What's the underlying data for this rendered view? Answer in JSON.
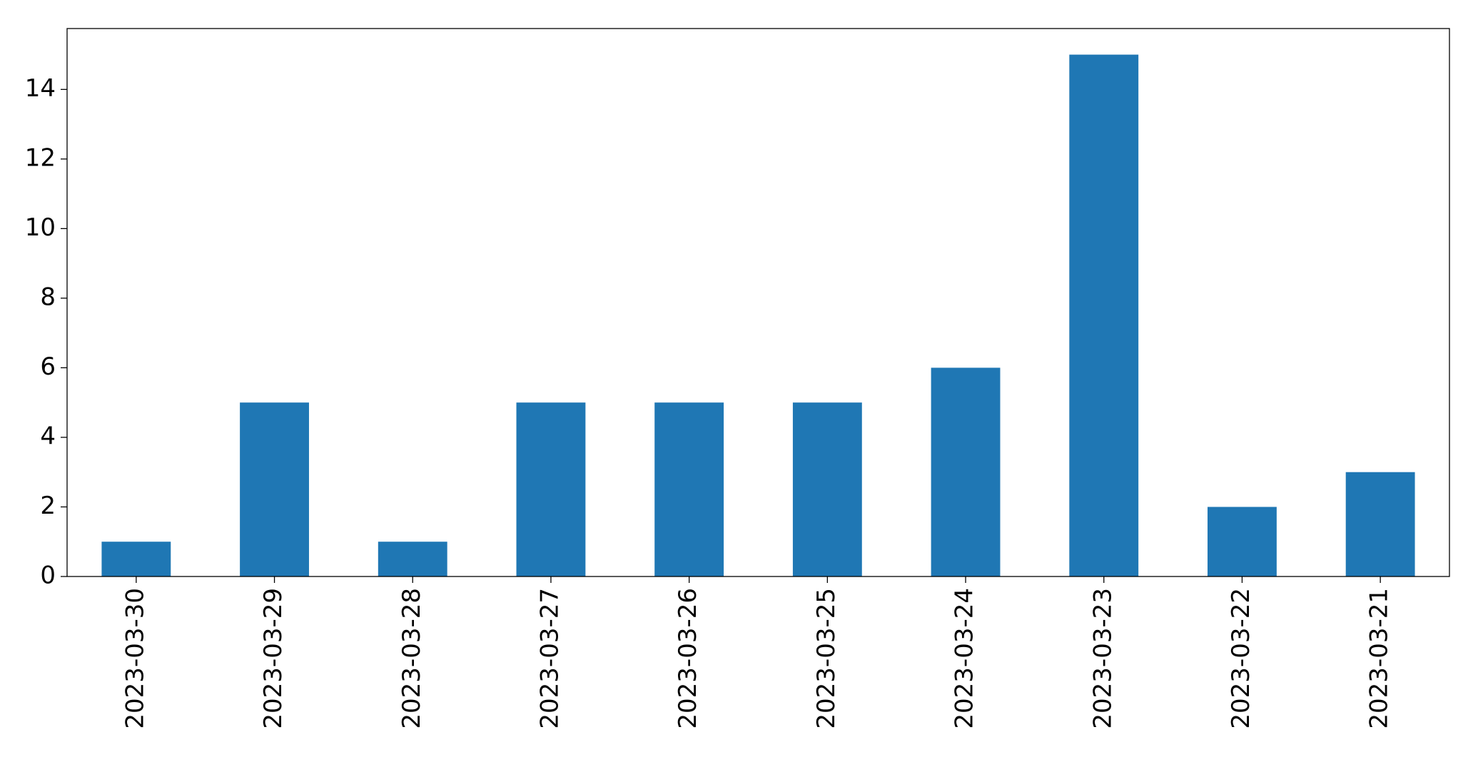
{
  "chart_data": {
    "type": "bar",
    "categories": [
      "2023-03-30",
      "2023-03-29",
      "2023-03-28",
      "2023-03-27",
      "2023-03-26",
      "2023-03-25",
      "2023-03-24",
      "2023-03-23",
      "2023-03-22",
      "2023-03-21"
    ],
    "values": [
      1,
      5,
      1,
      5,
      5,
      5,
      6,
      15,
      2,
      3
    ],
    "color": "#1f77b4",
    "ylim": [
      0,
      15.75
    ],
    "yticks": [
      0,
      2,
      4,
      6,
      8,
      10,
      12,
      14
    ],
    "grid": false
  }
}
